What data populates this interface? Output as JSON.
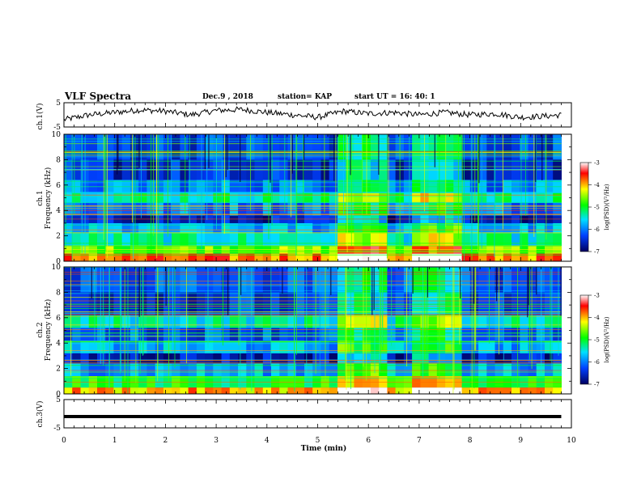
{
  "header": {
    "title": "VLF Spectra",
    "date": "Dec.9 , 2018",
    "station": "station= KAP",
    "start": "start UT =   16: 40: 1"
  },
  "colorbar": {
    "label": "log(PSD)(V²/Hz)",
    "ticks": [
      "-3",
      "-4",
      "-5",
      "-6",
      "-7"
    ],
    "stops": [
      "#ffffff",
      "#ff0000",
      "#ffff00",
      "#00ff00",
      "#00e0ff",
      "#0040ff",
      "#000060"
    ]
  },
  "chart_data": [
    {
      "type": "line",
      "name": "ch1-waveform",
      "ylabel": "ch.1(V)",
      "ylim": [
        -5,
        5
      ],
      "yticks": [
        "5",
        "-5"
      ],
      "xlim": [
        0,
        10
      ],
      "x": [
        0,
        0.5,
        1,
        1.5,
        2,
        2.5,
        3,
        3.5,
        4,
        4.5,
        5,
        5.5,
        6,
        6.5,
        7,
        7.5,
        8,
        8.5,
        9,
        9.5,
        9.8
      ],
      "y": [
        -2,
        0,
        1,
        2,
        1.5,
        0,
        1.8,
        2.2,
        1,
        0,
        -1,
        1.5,
        0.5,
        1,
        0,
        1,
        0,
        0.5,
        -1,
        -0.5,
        0
      ]
    },
    {
      "type": "heatmap",
      "name": "ch1-spectrogram",
      "ylabel": "ch.1\nFrequency (kHz)",
      "ylim": [
        0,
        10
      ],
      "yticks": [
        "0",
        "2",
        "4",
        "6",
        "8",
        "10"
      ],
      "xlim": [
        0,
        9.8
      ],
      "bands_khz": [
        {
          "f": [
            0,
            0.6
          ],
          "v": -3.8
        },
        {
          "f": [
            0.6,
            1.2
          ],
          "v": -4.6
        },
        {
          "f": [
            1.2,
            2.2
          ],
          "v": -5.4
        },
        {
          "f": [
            2.2,
            3.0
          ],
          "v": -5.8
        },
        {
          "f": [
            3.0,
            3.6
          ],
          "v": -6.6
        },
        {
          "f": [
            3.6,
            4.6
          ],
          "v": -6.0
        },
        {
          "f": [
            4.6,
            5.4
          ],
          "v": -5.3
        },
        {
          "f": [
            5.4,
            6.4
          ],
          "v": -6.0
        },
        {
          "f": [
            6.4,
            8.0
          ],
          "v": -6.5
        },
        {
          "f": [
            8.0,
            10.0
          ],
          "v": -6.3
        }
      ],
      "bursts_min": [
        [
          5.4,
          6.4
        ],
        [
          6.9,
          7.8
        ]
      ]
    },
    {
      "type": "heatmap",
      "name": "ch2-spectrogram",
      "ylabel": "ch.2\nFrequency (kHz)",
      "ylim": [
        0,
        10
      ],
      "yticks": [
        "0",
        "2",
        "4",
        "6",
        "8",
        "10"
      ],
      "xlim": [
        0,
        9.8
      ],
      "bands_khz": [
        {
          "f": [
            0,
            0.5
          ],
          "v": -4.0
        },
        {
          "f": [
            0.5,
            1.4
          ],
          "v": -5.0
        },
        {
          "f": [
            1.4,
            2.4
          ],
          "v": -5.8
        },
        {
          "f": [
            2.4,
            3.2
          ],
          "v": -6.6
        },
        {
          "f": [
            3.2,
            4.2
          ],
          "v": -5.8
        },
        {
          "f": [
            4.2,
            5.2
          ],
          "v": -6.2
        },
        {
          "f": [
            5.2,
            6.2
          ],
          "v": -5.4
        },
        {
          "f": [
            6.2,
            8.0
          ],
          "v": -6.4
        },
        {
          "f": [
            8.0,
            10.0
          ],
          "v": -6.2
        }
      ],
      "bursts_min": [
        [
          5.4,
          6.4
        ],
        [
          6.9,
          7.8
        ]
      ]
    },
    {
      "type": "line",
      "name": "ch3-waveform",
      "ylabel": "ch.3(V)",
      "ylim": [
        -5,
        5
      ],
      "yticks": [
        "5",
        "-5"
      ],
      "xlim": [
        0,
        10
      ],
      "x": [
        0,
        9.8
      ],
      "y": [
        -1,
        -1
      ]
    }
  ],
  "xaxis": {
    "label": "Time  (min)",
    "ticks": [
      "0",
      "1",
      "2",
      "3",
      "4",
      "5",
      "6",
      "7",
      "8",
      "9",
      "10"
    ],
    "range": [
      0,
      10
    ]
  }
}
